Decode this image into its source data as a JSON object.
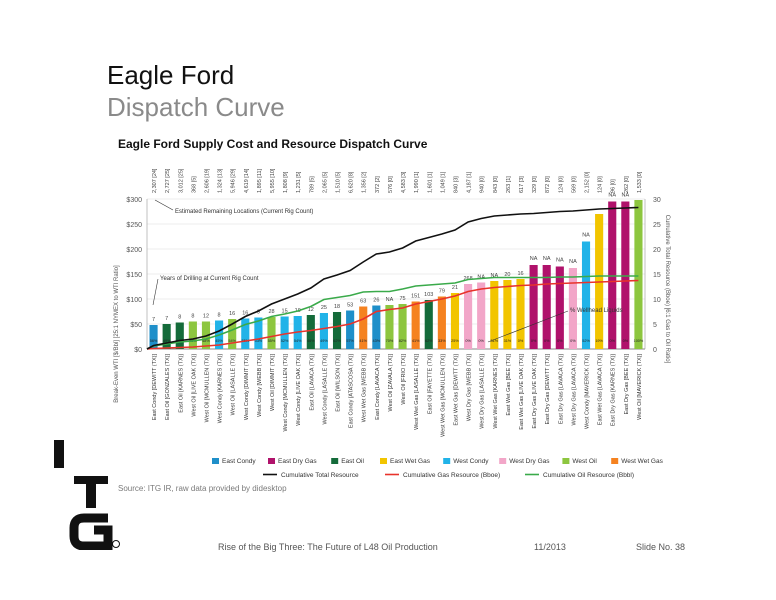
{
  "slide": {
    "title": "Eagle Ford",
    "subtitle": "Dispatch Curve",
    "source": "Source: ITG IR, raw data provided by didesktop",
    "footer_left": "Rise of the Big Three: The Future of L48 Oil Production",
    "footer_date": "11/2013",
    "footer_slide": "Slide No. 38"
  },
  "chart_data": {
    "type": "bar",
    "title": "Eagle Ford Supply Cost and Resource Dispatch Curve",
    "ylabel": "Break-Even WTI [$/Bbl] [25:1 NYMEX to WTI Ratio]",
    "y2label": "Cumulative Total Resource (Bboe) [6:1 Gas to Oil Ratio]",
    "ylim": [
      0,
      300
    ],
    "y2lim": [
      0,
      30
    ],
    "yticks": [
      "$0",
      "$50",
      "$100",
      "$150",
      "$200",
      "$250",
      "$300"
    ],
    "y2ticks": [
      "0",
      "5",
      "10",
      "15",
      "20",
      "25",
      "30"
    ],
    "grid": true,
    "categories": [
      "East Condy [DEWITT (TX)]",
      "East Oil [GONZALES (TX)]",
      "East Oil [KARNES (TX)]",
      "West Oil [LIVE OAK (TX)]",
      "West Oil [MCMULLEN (TX)]",
      "West Condy [KARNES (TX)]",
      "West Oil [LASALLE (TX)]",
      "West Condy [DIMMIT (TX)]",
      "West Condy [WEBB (TX)]",
      "West Oil [DIMMIT (TX)]",
      "West Condy [MCMULLEN (TX)]",
      "West Condy [LIVE OAK (TX)]",
      "East Oil [LAVACA (TX)]",
      "West Condy [LASALLE (TX)]",
      "East Oil [WILSON (TX)]",
      "East Condy [ATASCOSA (TX)]",
      "West Wet Gas [WEBB (TX)]",
      "East Condy [LAVACA (TX)]",
      "West Oil [ZAVALA (TX)]",
      "West Oil [FRIO (TX)]",
      "West Wet Gas [LASALLE (TX)]",
      "East Oil [FAYETTE (TX)]",
      "West Wet Gas [MCMULLEN (TX)]",
      "East Wet Gas [DEWITT (TX)]",
      "West Dry Gas [WEBB (TX)]",
      "West Dry Gas [LASALLE (TX)]",
      "West Wet Gas [KARNES (TX)]",
      "East Wet Gas [BEE (TX)]",
      "East Wet Gas [LIVE OAK (TX)]",
      "East Dry Gas [LIVE OAK (TX)]",
      "East Dry Gas [DEWITT (TX)]",
      "East Dry Gas [LAVACA (TX)]",
      "West Dry Gas [LAVACA (TX)]",
      "West Condy [MAVERICK (TX)]",
      "East Wet Gas [LAVACA (TX)]",
      "East Dry Gas [KARNES (TX)]",
      "East Dry Gas [BEE (TX)]",
      "West Oil [MAVERICK (TX)]"
    ],
    "groups": [
      "East Condy",
      "East Oil",
      "East Oil",
      "West Oil",
      "West Oil",
      "West Condy",
      "West Oil",
      "West Condy",
      "West Condy",
      "West Oil",
      "West Condy",
      "West Condy",
      "East Oil",
      "West Condy",
      "East Oil",
      "East Condy",
      "West Wet Gas",
      "East Condy",
      "West Oil",
      "West Oil",
      "West Wet Gas",
      "East Oil",
      "West Wet Gas",
      "East Wet Gas",
      "West Dry Gas",
      "West Dry Gas",
      "East Wet Gas",
      "East Wet Gas",
      "East Wet Gas",
      "East Dry Gas",
      "East Dry Gas",
      "East Dry Gas",
      "West Dry Gas",
      "West Condy",
      "East Wet Gas",
      "East Dry Gas",
      "East Dry Gas",
      "West Oil"
    ],
    "values": [
      48,
      50,
      53,
      55,
      55,
      57,
      60,
      61,
      63,
      64,
      65,
      66,
      68,
      72,
      74,
      77,
      85,
      87,
      88,
      90,
      95,
      98,
      105,
      112,
      130,
      133,
      136,
      138,
      140,
      168,
      168,
      165,
      162,
      215,
      270,
      295,
      295,
      298
    ],
    "top_labels": [
      "",
      "",
      "",
      "",
      "",
      "",
      "",
      "",
      "",
      "",
      "",
      "",
      "",
      "",
      "",
      "",
      "",
      "",
      "",
      "",
      "",
      "",
      "",
      "",
      "",
      "",
      "",
      "",
      "",
      "NA",
      "NA",
      "NA",
      "NA",
      "NA",
      "",
      "NA",
      "NA",
      ""
    ],
    "years_labels": [
      "7",
      "7",
      "8",
      "8",
      "12",
      "8",
      "16",
      "16",
      "9",
      "28",
      "15",
      "19",
      "12",
      "25",
      "18",
      "53",
      "63",
      "26",
      "NA",
      "75",
      "151",
      "103",
      "79",
      "21",
      "268",
      "NA",
      "NA",
      "20",
      "16",
      "",
      "",
      "",
      "",
      "",
      "",
      "",
      "",
      ""
    ],
    "bar_labels": [
      "56%",
      "49%",
      "46%",
      "46%",
      "48%",
      "45%",
      "54%",
      "55%",
      "53%",
      "55%",
      "52%",
      "54%",
      "46%",
      "49%",
      "62%",
      "57%",
      "41%",
      "43%",
      "70%",
      "82%",
      "41%",
      "62%",
      "33%",
      "25%",
      "0%",
      "0%",
      "31%",
      "31%",
      "0%",
      "0%",
      "0%",
      "0%",
      "0%",
      "52%",
      "19%",
      "0%",
      "0%",
      "100%"
    ],
    "locations": [
      "2,307 [24]",
      "2,727 [25]",
      "3,012 [25]",
      "368 [5]",
      "2,606 [19]",
      "1,324 [13]",
      "5,946 [29]",
      "4,619 [14]",
      "1,895 [11]",
      "5,955 [10]",
      "1,808 [9]",
      "1,231 [5]",
      "789 [5]",
      "2,065 [5]",
      "1,510 [5]",
      "6,620 [8]",
      "1,356 [2]",
      "372 [2]",
      "576 [0]",
      "4,583 [3]",
      "1,990 [1]",
      "1,601 [1]",
      "1,049 [1]",
      "840 [3]",
      "4,187 [1]",
      "940 [0]",
      "843 [0]",
      "263 [1]",
      "617 [3]",
      "329 [0]",
      "872 [0]",
      "124 [0]",
      "569 [0]",
      "2,152 [0]",
      "124 [0]",
      "96 [0]",
      "262 [0]",
      "1,533 [0]"
    ],
    "cumulative_total_bboe": [
      0.7,
      1.2,
      1.7,
      2.0,
      2.6,
      3.6,
      5.0,
      6.5,
      7.6,
      9.0,
      10.0,
      11.0,
      12.2,
      14.0,
      14.8,
      15.7,
      17.4,
      19.0,
      19.4,
      20.2,
      21.6,
      22.3,
      23.0,
      23.8,
      25.4,
      26.1,
      26.6,
      26.8,
      27.0,
      27.1,
      27.3,
      27.5,
      27.6,
      27.8,
      28.0,
      28.1,
      28.2,
      28.3
    ],
    "cumulative_gas_bboe": [
      0.1,
      0.2,
      0.3,
      0.4,
      0.6,
      0.8,
      1.2,
      1.6,
      2.0,
      2.5,
      3.0,
      3.4,
      3.7,
      4.1,
      4.5,
      5.0,
      6.0,
      7.5,
      7.9,
      8.2,
      9.0,
      9.5,
      10.0,
      10.6,
      11.5,
      12.0,
      12.3,
      12.5,
      12.7,
      12.8,
      13.0,
      13.1,
      13.2,
      13.3,
      13.4,
      13.5,
      13.6,
      13.7
    ],
    "cumulative_oil_bbbl": [
      0.6,
      1.0,
      1.4,
      1.6,
      2.0,
      2.8,
      3.8,
      4.9,
      5.6,
      6.5,
      7.0,
      7.6,
      8.5,
      9.9,
      10.3,
      10.7,
      11.4,
      11.5,
      11.5,
      12.0,
      12.6,
      12.8,
      13.0,
      13.2,
      13.9,
      14.1,
      14.3,
      14.3,
      14.3,
      14.3,
      14.3,
      14.4,
      14.4,
      14.5,
      14.6,
      14.6,
      14.6,
      14.6
    ],
    "annotations": {
      "locations": "Estimated Remaining Locations (Current Rig Count)",
      "years": "Years of Drilling at Current Rig Count",
      "wellhead": "% Wellhead Liquids"
    },
    "legend_bars": [
      {
        "name": "East Condy",
        "color": "#1f8fc9"
      },
      {
        "name": "East Dry Gas",
        "color": "#b0126b"
      },
      {
        "name": "East Oil",
        "color": "#146b3a"
      },
      {
        "name": "East Wet Gas",
        "color": "#f2c500"
      },
      {
        "name": "West Condy",
        "color": "#21b3e8"
      },
      {
        "name": "West Dry Gas",
        "color": "#f2a6c8"
      },
      {
        "name": "West Oil",
        "color": "#8dc63f"
      },
      {
        "name": "West Wet Gas",
        "color": "#f58220"
      }
    ],
    "legend_lines": [
      {
        "name": "Cumulative Total Resource",
        "color": "#111111"
      },
      {
        "name": "Cumulative Gas Resource (Bboe)",
        "color": "#e8332b"
      },
      {
        "name": "Cumulative Oil Resource (Bbbl)",
        "color": "#3aaa4a"
      }
    ]
  }
}
